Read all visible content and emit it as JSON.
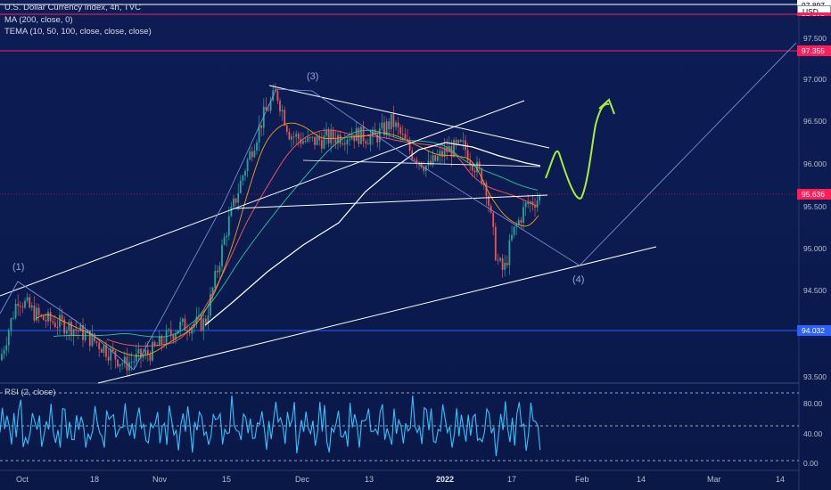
{
  "legend": {
    "title": "U.S. Dollar Currency Index, 4h, TVC",
    "ma": "MA (200, close, 0)",
    "tema": "TEMA (10, 50, 100, close, close, close)",
    "rsi": "RSI (2, close)"
  },
  "price_labels": {
    "top_cut": "97.897",
    "currency": "USD",
    "magenta_cut": "97.813",
    "upper": "97.355",
    "current": "95.636",
    "lower": "94.032"
  },
  "y_ticks": [
    "97.500",
    "97.000",
    "96.500",
    "96.000",
    "95.500",
    "95.000",
    "94.500",
    "93.500"
  ],
  "rsi_ticks": [
    "80.00",
    "40.00",
    "0.00"
  ],
  "x_labels": [
    "Oct",
    "18",
    "Nov",
    "15",
    "Dec",
    "13",
    "2022",
    "17",
    "Feb",
    "14",
    "Mar",
    "14"
  ],
  "wave_labels": {
    "w1": "(1)",
    "w3": "(3)",
    "w4": "(4)"
  },
  "colors": {
    "background": "#0b1a4e",
    "candle_up": "#26a69a",
    "candle_down": "#ef5350",
    "ma_line": "#ffffff",
    "rsi_line": "#2ec3ff",
    "forecast": "#a6f03c",
    "accent_magenta": "#ff1e5a",
    "accent_blue": "#2962ff"
  }
}
